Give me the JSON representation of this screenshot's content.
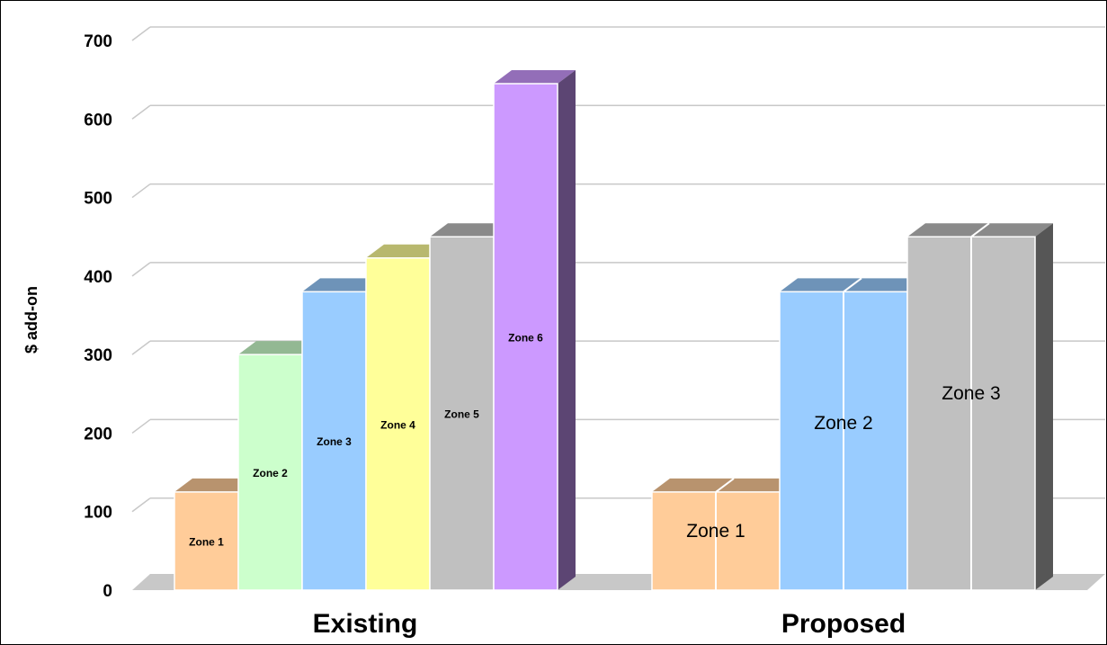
{
  "chart_data": {
    "type": "bar",
    "style": "3d-stacked-columns-side-by-side",
    "ylabel": "$ add-on",
    "ylim": [
      0,
      700
    ],
    "yticks": [
      0,
      100,
      200,
      300,
      400,
      500,
      600,
      700
    ],
    "grid": true,
    "categories": [
      "Existing",
      "Proposed"
    ],
    "groups": [
      {
        "category": "Existing",
        "bars": [
          {
            "label": "Zone 1",
            "value": 125,
            "color": "#FFCC99",
            "slots": 1
          },
          {
            "label": "Zone 2",
            "value": 300,
            "color": "#CCFFCC",
            "slots": 1
          },
          {
            "label": "Zone 3",
            "value": 380,
            "color": "#99CCFF",
            "slots": 1
          },
          {
            "label": "Zone 4",
            "value": 423,
            "color": "#FFFF99",
            "slots": 1
          },
          {
            "label": "Zone 5",
            "value": 450,
            "color": "#C0C0C0",
            "slots": 1
          },
          {
            "label": "Zone 6",
            "value": 645,
            "color": "#CC99FF",
            "slots": 1
          }
        ]
      },
      {
        "category": "Proposed",
        "bars": [
          {
            "label": "Zone 1",
            "value": 125,
            "color": "#FFCC99",
            "slots": 2
          },
          {
            "label": "Zone 2",
            "value": 380,
            "color": "#99CCFF",
            "slots": 2
          },
          {
            "label": "Zone 3",
            "value": 450,
            "color": "#C0C0C0",
            "slots": 2
          }
        ]
      }
    ]
  }
}
